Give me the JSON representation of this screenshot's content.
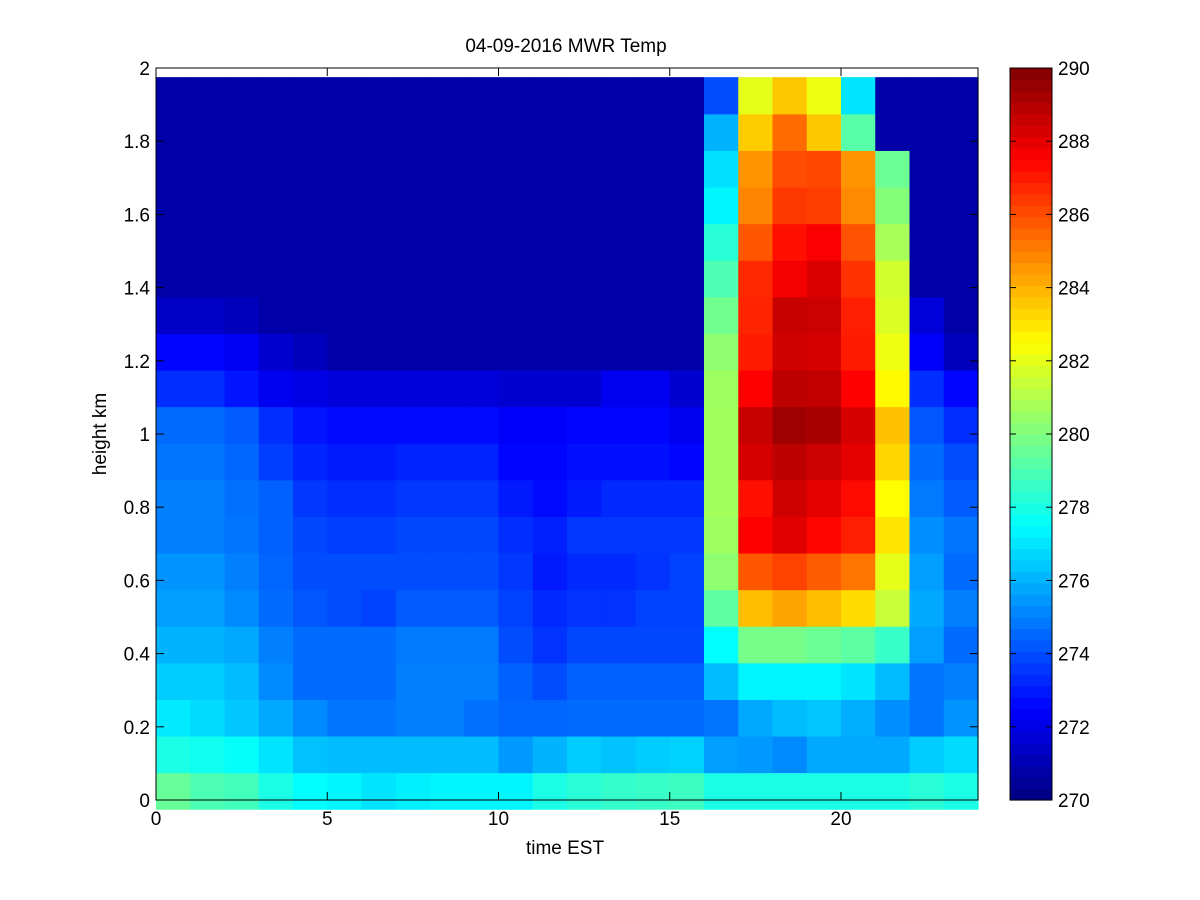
{
  "chart_data": {
    "type": "heatmap",
    "title": "04-09-2016 MWR Temp",
    "xlabel": "time EST",
    "ylabel": "height km",
    "xlim": [
      0,
      24
    ],
    "ylim": [
      0,
      2
    ],
    "x_ticks": [
      0,
      5,
      10,
      15,
      20
    ],
    "y_ticks": [
      0,
      0.2,
      0.4,
      0.6,
      0.8,
      1,
      1.2,
      1.4,
      1.6,
      1.8,
      2
    ],
    "colorbar": {
      "colormap": "jet",
      "range": [
        270,
        290
      ],
      "ticks": [
        270,
        272,
        274,
        276,
        278,
        280,
        282,
        284,
        286,
        288,
        290
      ]
    },
    "x": [
      0.5,
      1.5,
      2.5,
      3.5,
      4.5,
      5.5,
      6.5,
      7.5,
      8.5,
      9.5,
      10.5,
      11.5,
      12.5,
      13.5,
      14.5,
      15.5,
      16.5,
      17.5,
      18.5,
      19.5,
      20.5,
      21.5,
      22.5,
      23.5
    ],
    "y": [
      0.025,
      0.125,
      0.225,
      0.325,
      0.425,
      0.525,
      0.625,
      0.725,
      0.825,
      0.925,
      1.025,
      1.125,
      1.225,
      1.325,
      1.425,
      1.525,
      1.625,
      1.725,
      1.825,
      1.925
    ],
    "z": [
      [
        279.5,
        279.0,
        278.8,
        278.0,
        277.5,
        277.3,
        277.0,
        277.2,
        277.3,
        277.3,
        277.3,
        278.0,
        278.3,
        278.5,
        278.6,
        278.7,
        278.0,
        278.0,
        278.0,
        278.0,
        278.0,
        278.0,
        278.3,
        278.0
      ],
      [
        278.0,
        277.8,
        277.6,
        277.0,
        276.3,
        276.2,
        276.2,
        276.2,
        276.2,
        276.2,
        275.5,
        276.0,
        276.5,
        276.3,
        276.5,
        276.6,
        275.6,
        275.5,
        275.2,
        275.8,
        275.8,
        275.8,
        276.5,
        276.8
      ],
      [
        277.1,
        276.8,
        276.4,
        275.8,
        275.2,
        274.8,
        274.8,
        275.0,
        275.0,
        274.7,
        274.5,
        274.5,
        274.6,
        274.6,
        274.6,
        274.6,
        274.8,
        275.8,
        276.2,
        276.4,
        275.9,
        275.3,
        274.8,
        275.4
      ],
      [
        276.5,
        276.5,
        276.2,
        275.2,
        274.6,
        274.6,
        274.6,
        275.0,
        275.0,
        275.0,
        274.4,
        274.0,
        274.4,
        274.4,
        274.4,
        274.4,
        276.2,
        277.3,
        277.3,
        277.3,
        277.0,
        276.2,
        274.8,
        275.0
      ],
      [
        276.0,
        276.0,
        275.8,
        275.0,
        274.6,
        274.6,
        274.6,
        274.9,
        274.9,
        274.9,
        274.0,
        273.5,
        273.9,
        273.9,
        273.9,
        273.9,
        277.5,
        279.8,
        279.8,
        279.6,
        279.3,
        278.6,
        275.6,
        274.6
      ],
      [
        275.6,
        275.6,
        275.2,
        274.6,
        274.2,
        274.0,
        273.8,
        274.3,
        274.3,
        274.3,
        273.8,
        273.3,
        273.5,
        273.5,
        273.8,
        273.8,
        279.3,
        283.8,
        284.3,
        283.8,
        283.2,
        281.4,
        275.8,
        275.0
      ],
      [
        275.4,
        275.4,
        275.0,
        274.5,
        274.0,
        274.0,
        274.0,
        274.0,
        274.0,
        274.0,
        273.6,
        273.0,
        273.3,
        273.3,
        273.5,
        273.8,
        280.3,
        285.8,
        286.2,
        285.7,
        285.2,
        282.0,
        275.6,
        274.6
      ],
      [
        275.0,
        275.0,
        274.8,
        274.4,
        273.9,
        273.7,
        273.7,
        273.9,
        273.9,
        273.9,
        273.4,
        273.1,
        273.6,
        273.6,
        273.6,
        273.6,
        280.6,
        287.5,
        288.1,
        287.4,
        286.9,
        283.0,
        275.3,
        274.8
      ],
      [
        275.0,
        275.0,
        274.7,
        274.4,
        273.6,
        273.4,
        273.4,
        273.6,
        273.6,
        273.6,
        273.0,
        272.7,
        273.0,
        273.3,
        273.3,
        273.3,
        280.7,
        287.2,
        288.4,
        288.0,
        287.3,
        282.5,
        274.9,
        274.3
      ],
      [
        274.8,
        274.8,
        274.5,
        273.7,
        273.2,
        273.0,
        273.0,
        273.2,
        273.2,
        273.2,
        272.6,
        272.6,
        272.8,
        272.8,
        272.8,
        272.6,
        280.7,
        288.3,
        288.8,
        288.5,
        288.0,
        283.3,
        274.6,
        274.0
      ],
      [
        274.6,
        274.6,
        274.3,
        273.4,
        272.9,
        272.7,
        272.7,
        272.7,
        272.7,
        272.7,
        272.4,
        272.4,
        272.6,
        272.6,
        272.6,
        272.2,
        280.7,
        288.6,
        289.4,
        289.2,
        288.3,
        283.7,
        274.2,
        273.4
      ],
      [
        273.4,
        273.4,
        272.9,
        272.2,
        272.0,
        271.8,
        271.8,
        271.8,
        271.8,
        271.8,
        271.6,
        271.6,
        271.6,
        272.2,
        272.2,
        271.6,
        280.6,
        287.5,
        288.8,
        288.7,
        287.5,
        282.6,
        273.4,
        272.6
      ],
      [
        272.6,
        272.6,
        272.3,
        271.6,
        271.2,
        270.8,
        270.8,
        270.8,
        270.8,
        270.8,
        270.8,
        270.8,
        270.8,
        270.8,
        270.8,
        270.8,
        280.3,
        287.0,
        288.4,
        288.3,
        287.0,
        282.2,
        272.4,
        271.2
      ],
      [
        271.4,
        271.4,
        271.2,
        270.8,
        270.8,
        270.8,
        270.8,
        270.8,
        270.8,
        270.8,
        270.8,
        270.8,
        270.8,
        270.8,
        270.8,
        270.8,
        279.7,
        286.8,
        288.6,
        288.5,
        286.9,
        281.8,
        271.8,
        270.8
      ],
      [
        270.8,
        270.8,
        270.8,
        270.8,
        270.8,
        270.8,
        270.8,
        270.8,
        270.8,
        270.8,
        270.8,
        270.8,
        270.8,
        270.8,
        270.8,
        270.8,
        279.0,
        286.7,
        287.7,
        288.2,
        286.5,
        281.6,
        270.8,
        270.8
      ],
      [
        270.8,
        270.8,
        270.8,
        270.8,
        270.8,
        270.8,
        270.8,
        270.8,
        270.8,
        270.8,
        270.8,
        270.8,
        270.8,
        270.8,
        270.8,
        270.8,
        278.3,
        285.8,
        287.2,
        287.6,
        285.9,
        280.8,
        270.8,
        270.8
      ],
      [
        270.8,
        270.8,
        270.8,
        270.8,
        270.8,
        270.8,
        270.8,
        270.8,
        270.8,
        270.8,
        270.8,
        270.8,
        270.8,
        270.8,
        270.8,
        270.8,
        277.3,
        284.9,
        286.4,
        286.3,
        284.8,
        280.1,
        270.8,
        270.8
      ],
      [
        270.8,
        270.8,
        270.8,
        270.8,
        270.8,
        270.8,
        270.8,
        270.8,
        270.8,
        270.8,
        270.8,
        270.8,
        270.8,
        270.8,
        270.8,
        270.8,
        276.9,
        284.6,
        286.0,
        286.1,
        284.6,
        279.6,
        270.8,
        270.8
      ],
      [
        270.8,
        270.8,
        270.8,
        270.8,
        270.8,
        270.8,
        270.8,
        270.8,
        270.8,
        270.8,
        270.8,
        270.8,
        270.8,
        270.8,
        270.8,
        270.8,
        276.0,
        283.5,
        285.4,
        283.6,
        279.2,
        270.8,
        270.8,
        270.8
      ],
      [
        270.8,
        270.8,
        270.8,
        270.8,
        270.8,
        270.8,
        270.8,
        270.8,
        270.8,
        270.8,
        270.8,
        270.8,
        270.8,
        270.8,
        270.8,
        270.8,
        274.0,
        282.0,
        283.6,
        282.2,
        277.0,
        270.8,
        270.8,
        270.8
      ]
    ]
  }
}
